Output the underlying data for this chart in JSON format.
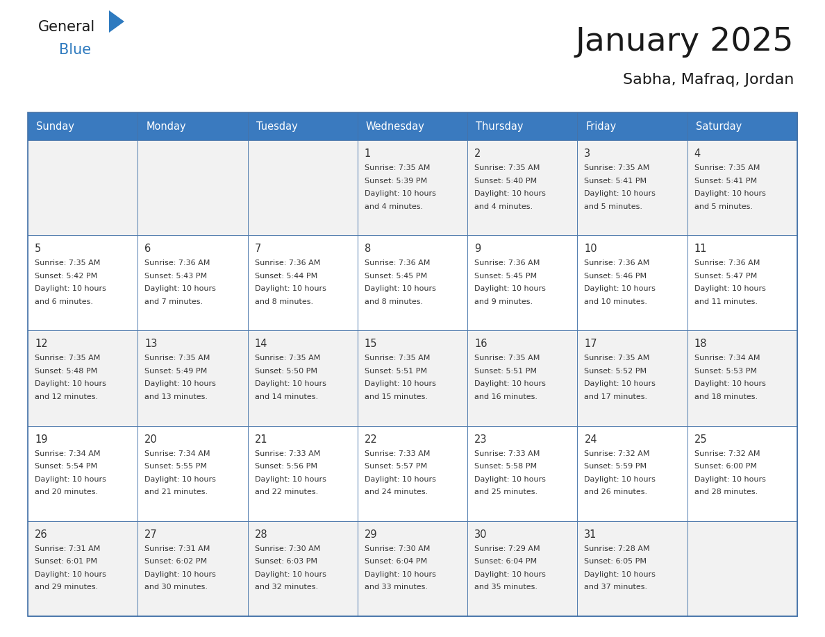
{
  "title": "January 2025",
  "subtitle": "Sabha, Mafraq, Jordan",
  "days_of_week": [
    "Sunday",
    "Monday",
    "Tuesday",
    "Wednesday",
    "Thursday",
    "Friday",
    "Saturday"
  ],
  "header_bg": "#3a7abf",
  "header_text": "#ffffff",
  "cell_bg_odd": "#f2f2f2",
  "cell_bg_even": "#ffffff",
  "border_color": "#4472a8",
  "row_line_color": "#4472a8",
  "text_color": "#333333",
  "title_color": "#1a1a1a",
  "logo_general_color": "#1a1a1a",
  "logo_blue_color": "#2e7abf",
  "calendar": [
    [
      {
        "day": null,
        "sunrise": null,
        "sunset": null,
        "daylight": null
      },
      {
        "day": null,
        "sunrise": null,
        "sunset": null,
        "daylight": null
      },
      {
        "day": null,
        "sunrise": null,
        "sunset": null,
        "daylight": null
      },
      {
        "day": 1,
        "sunrise": "7:35 AM",
        "sunset": "5:39 PM",
        "daylight": "10 hours and 4 minutes."
      },
      {
        "day": 2,
        "sunrise": "7:35 AM",
        "sunset": "5:40 PM",
        "daylight": "10 hours and 4 minutes."
      },
      {
        "day": 3,
        "sunrise": "7:35 AM",
        "sunset": "5:41 PM",
        "daylight": "10 hours and 5 minutes."
      },
      {
        "day": 4,
        "sunrise": "7:35 AM",
        "sunset": "5:41 PM",
        "daylight": "10 hours and 5 minutes."
      }
    ],
    [
      {
        "day": 5,
        "sunrise": "7:35 AM",
        "sunset": "5:42 PM",
        "daylight": "10 hours and 6 minutes."
      },
      {
        "day": 6,
        "sunrise": "7:36 AM",
        "sunset": "5:43 PM",
        "daylight": "10 hours and 7 minutes."
      },
      {
        "day": 7,
        "sunrise": "7:36 AM",
        "sunset": "5:44 PM",
        "daylight": "10 hours and 8 minutes."
      },
      {
        "day": 8,
        "sunrise": "7:36 AM",
        "sunset": "5:45 PM",
        "daylight": "10 hours and 8 minutes."
      },
      {
        "day": 9,
        "sunrise": "7:36 AM",
        "sunset": "5:45 PM",
        "daylight": "10 hours and 9 minutes."
      },
      {
        "day": 10,
        "sunrise": "7:36 AM",
        "sunset": "5:46 PM",
        "daylight": "10 hours and 10 minutes."
      },
      {
        "day": 11,
        "sunrise": "7:36 AM",
        "sunset": "5:47 PM",
        "daylight": "10 hours and 11 minutes."
      }
    ],
    [
      {
        "day": 12,
        "sunrise": "7:35 AM",
        "sunset": "5:48 PM",
        "daylight": "10 hours and 12 minutes."
      },
      {
        "day": 13,
        "sunrise": "7:35 AM",
        "sunset": "5:49 PM",
        "daylight": "10 hours and 13 minutes."
      },
      {
        "day": 14,
        "sunrise": "7:35 AM",
        "sunset": "5:50 PM",
        "daylight": "10 hours and 14 minutes."
      },
      {
        "day": 15,
        "sunrise": "7:35 AM",
        "sunset": "5:51 PM",
        "daylight": "10 hours and 15 minutes."
      },
      {
        "day": 16,
        "sunrise": "7:35 AM",
        "sunset": "5:51 PM",
        "daylight": "10 hours and 16 minutes."
      },
      {
        "day": 17,
        "sunrise": "7:35 AM",
        "sunset": "5:52 PM",
        "daylight": "10 hours and 17 minutes."
      },
      {
        "day": 18,
        "sunrise": "7:34 AM",
        "sunset": "5:53 PM",
        "daylight": "10 hours and 18 minutes."
      }
    ],
    [
      {
        "day": 19,
        "sunrise": "7:34 AM",
        "sunset": "5:54 PM",
        "daylight": "10 hours and 20 minutes."
      },
      {
        "day": 20,
        "sunrise": "7:34 AM",
        "sunset": "5:55 PM",
        "daylight": "10 hours and 21 minutes."
      },
      {
        "day": 21,
        "sunrise": "7:33 AM",
        "sunset": "5:56 PM",
        "daylight": "10 hours and 22 minutes."
      },
      {
        "day": 22,
        "sunrise": "7:33 AM",
        "sunset": "5:57 PM",
        "daylight": "10 hours and 24 minutes."
      },
      {
        "day": 23,
        "sunrise": "7:33 AM",
        "sunset": "5:58 PM",
        "daylight": "10 hours and 25 minutes."
      },
      {
        "day": 24,
        "sunrise": "7:32 AM",
        "sunset": "5:59 PM",
        "daylight": "10 hours and 26 minutes."
      },
      {
        "day": 25,
        "sunrise": "7:32 AM",
        "sunset": "6:00 PM",
        "daylight": "10 hours and 28 minutes."
      }
    ],
    [
      {
        "day": 26,
        "sunrise": "7:31 AM",
        "sunset": "6:01 PM",
        "daylight": "10 hours and 29 minutes."
      },
      {
        "day": 27,
        "sunrise": "7:31 AM",
        "sunset": "6:02 PM",
        "daylight": "10 hours and 30 minutes."
      },
      {
        "day": 28,
        "sunrise": "7:30 AM",
        "sunset": "6:03 PM",
        "daylight": "10 hours and 32 minutes."
      },
      {
        "day": 29,
        "sunrise": "7:30 AM",
        "sunset": "6:04 PM",
        "daylight": "10 hours and 33 minutes."
      },
      {
        "day": 30,
        "sunrise": "7:29 AM",
        "sunset": "6:04 PM",
        "daylight": "10 hours and 35 minutes."
      },
      {
        "day": 31,
        "sunrise": "7:28 AM",
        "sunset": "6:05 PM",
        "daylight": "10 hours and 37 minutes."
      },
      {
        "day": null,
        "sunrise": null,
        "sunset": null,
        "daylight": null
      }
    ]
  ]
}
